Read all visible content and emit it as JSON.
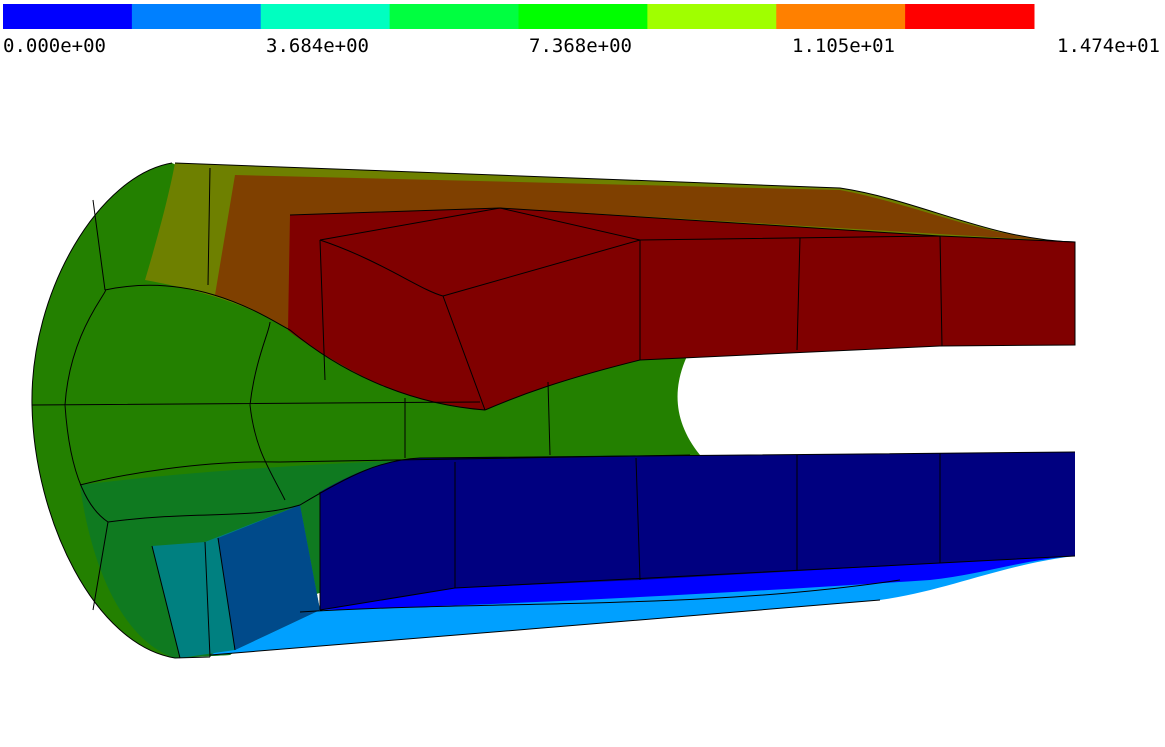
{
  "colorbar": {
    "colors": [
      "#0000ff",
      "#0080ff",
      "#00ffc0",
      "#00ff40",
      "#00ff00",
      "#a0ff00",
      "#ff8000",
      "#ff0000"
    ],
    "labels": [
      "0.000e+00",
      "3.684e+00",
      "7.368e+00",
      "1.105e+01",
      "1.474e+01"
    ]
  }
}
